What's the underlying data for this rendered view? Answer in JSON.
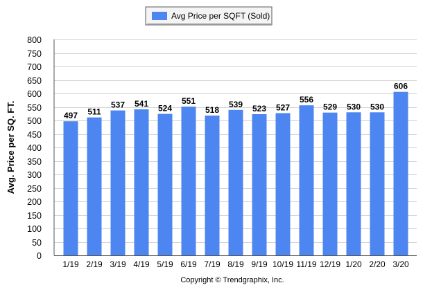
{
  "chart_data": {
    "type": "bar",
    "legend": {
      "placement": "top-center",
      "entries": [
        {
          "label": "Avg Price per SQFT (Sold)",
          "color": "#4d86f0"
        }
      ]
    },
    "categories": [
      "1/19",
      "2/19",
      "3/19",
      "4/19",
      "5/19",
      "6/19",
      "7/19",
      "8/19",
      "9/19",
      "10/19",
      "11/19",
      "12/19",
      "1/20",
      "2/20",
      "3/20"
    ],
    "series": [
      {
        "name": "Avg Price per SQFT (Sold)",
        "values": [
          497,
          511,
          537,
          541,
          524,
          551,
          518,
          539,
          523,
          527,
          556,
          529,
          530,
          530,
          606
        ],
        "color": "#4d86f0"
      }
    ],
    "data_labels": [
      "497",
      "511",
      "537",
      "541",
      "524",
      "551",
      "518",
      "539",
      "523",
      "527",
      "556",
      "529",
      "530",
      "530",
      "606"
    ],
    "ylabel": "Avg. Price per SQ. FT.",
    "xlabel": "",
    "ylim": [
      0,
      800
    ],
    "yticks": [
      0,
      50,
      100,
      150,
      200,
      250,
      300,
      350,
      400,
      450,
      500,
      550,
      600,
      650,
      700,
      750,
      800
    ],
    "grid": true,
    "footer": "Copyright © Trendgraphix, Inc."
  }
}
